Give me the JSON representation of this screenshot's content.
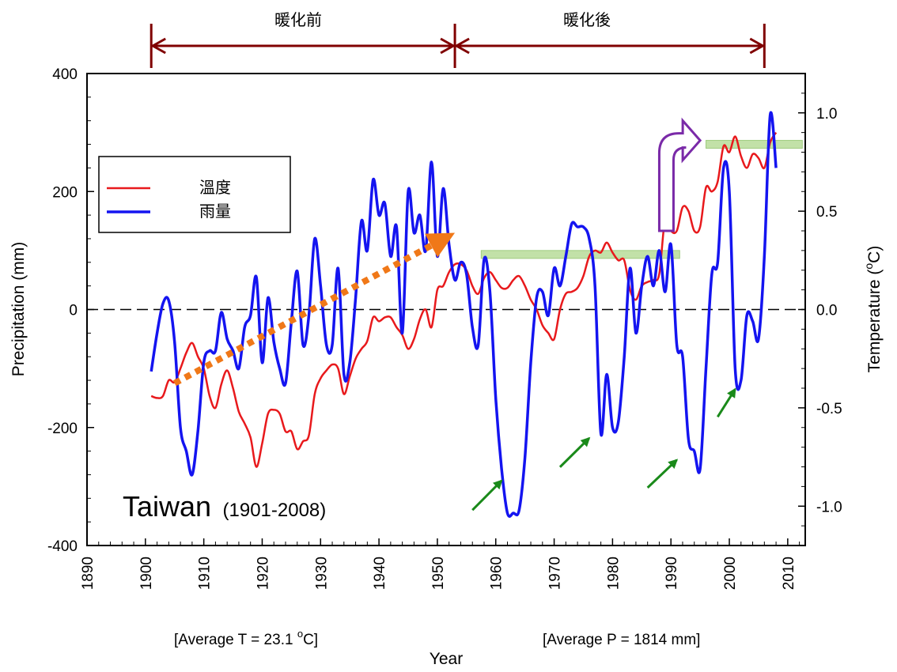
{
  "chart_data": {
    "type": "line",
    "xlabel": "Year",
    "ylabel_left": "Precipitation (mm)",
    "ylabel_right_prefix": "Temperature (",
    "ylabel_right_sup": "o",
    "ylabel_right_suffix": "C)",
    "xlim": [
      1890,
      2013
    ],
    "ylim_left": [
      -400,
      400
    ],
    "ylim_right": [
      -1.2,
      1.2
    ],
    "x_ticks": [
      1890,
      1900,
      1910,
      1920,
      1930,
      1940,
      1950,
      1960,
      1970,
      1980,
      1990,
      2000,
      2010
    ],
    "y_left_ticks": [
      -400,
      -200,
      0,
      200,
      400
    ],
    "y_right_ticks": [
      -1.0,
      -0.5,
      0.0,
      0.5,
      1.0
    ],
    "y_right_tick_labels": [
      "-1.0",
      "-0.5",
      "0.0",
      "0.5",
      "1.0"
    ],
    "legend": {
      "position": "upper-left",
      "entries": [
        {
          "label": "溫度",
          "color": "#e8191c"
        },
        {
          "label": "雨量",
          "color": "#1414f0"
        }
      ]
    },
    "series": [
      {
        "name": "溫度",
        "axis": "right",
        "color": "#e8191c",
        "x": [
          1901,
          1902,
          1903,
          1904,
          1905,
          1906,
          1907,
          1908,
          1909,
          1910,
          1911,
          1912,
          1913,
          1914,
          1915,
          1916,
          1917,
          1918,
          1919,
          1920,
          1921,
          1922,
          1923,
          1924,
          1925,
          1926,
          1927,
          1928,
          1929,
          1930,
          1931,
          1932,
          1933,
          1934,
          1935,
          1936,
          1937,
          1938,
          1939,
          1940,
          1941,
          1942,
          1943,
          1944,
          1945,
          1946,
          1947,
          1948,
          1949,
          1950,
          1951,
          1952,
          1953,
          1954,
          1955,
          1956,
          1957,
          1958,
          1959,
          1960,
          1961,
          1962,
          1963,
          1964,
          1965,
          1966,
          1967,
          1968,
          1969,
          1970,
          1971,
          1972,
          1973,
          1974,
          1975,
          1976,
          1977,
          1978,
          1979,
          1980,
          1981,
          1982,
          1983,
          1984,
          1985,
          1986,
          1987,
          1988,
          1989,
          1990,
          1991,
          1992,
          1993,
          1994,
          1995,
          1996,
          1997,
          1998,
          1999,
          2000,
          2001,
          2002,
          2003,
          2004,
          2005,
          2006,
          2007,
          2008
        ],
        "values": [
          -0.44,
          -0.45,
          -0.44,
          -0.36,
          -0.37,
          -0.3,
          -0.22,
          -0.17,
          -0.24,
          -0.3,
          -0.44,
          -0.5,
          -0.38,
          -0.31,
          -0.4,
          -0.52,
          -0.58,
          -0.65,
          -0.8,
          -0.68,
          -0.53,
          -0.51,
          -0.53,
          -0.62,
          -0.62,
          -0.71,
          -0.67,
          -0.64,
          -0.43,
          -0.35,
          -0.31,
          -0.28,
          -0.3,
          -0.43,
          -0.34,
          -0.25,
          -0.2,
          -0.16,
          -0.04,
          -0.06,
          -0.04,
          -0.04,
          -0.09,
          -0.13,
          -0.2,
          -0.15,
          -0.05,
          0.0,
          -0.09,
          0.1,
          0.12,
          0.19,
          0.23,
          0.23,
          0.2,
          0.12,
          0.08,
          0.16,
          0.19,
          0.15,
          0.11,
          0.11,
          0.15,
          0.17,
          0.12,
          0.05,
          0.0,
          -0.08,
          -0.12,
          -0.15,
          0.0,
          0.08,
          0.09,
          0.11,
          0.17,
          0.27,
          0.3,
          0.29,
          0.34,
          0.29,
          0.25,
          0.25,
          0.1,
          0.05,
          0.12,
          0.14,
          0.15,
          0.18,
          0.46,
          0.4,
          0.4,
          0.52,
          0.5,
          0.4,
          0.42,
          0.62,
          0.6,
          0.65,
          0.83,
          0.8,
          0.88,
          0.78,
          0.72,
          0.79,
          0.77,
          0.72,
          0.85,
          0.9
        ]
      },
      {
        "name": "雨量",
        "axis": "left",
        "color": "#1414f0",
        "x": [
          1901,
          1902,
          1903,
          1904,
          1905,
          1906,
          1907,
          1908,
          1909,
          1910,
          1911,
          1912,
          1913,
          1914,
          1915,
          1916,
          1917,
          1918,
          1919,
          1920,
          1921,
          1922,
          1923,
          1924,
          1925,
          1926,
          1927,
          1928,
          1929,
          1930,
          1931,
          1932,
          1933,
          1934,
          1935,
          1936,
          1937,
          1938,
          1939,
          1940,
          1941,
          1942,
          1943,
          1944,
          1945,
          1946,
          1947,
          1948,
          1949,
          1950,
          1951,
          1952,
          1953,
          1954,
          1955,
          1956,
          1957,
          1958,
          1959,
          1960,
          1961,
          1962,
          1963,
          1964,
          1965,
          1966,
          1967,
          1968,
          1969,
          1970,
          1971,
          1972,
          1973,
          1974,
          1975,
          1976,
          1977,
          1978,
          1979,
          1980,
          1981,
          1982,
          1983,
          1984,
          1985,
          1986,
          1987,
          1988,
          1989,
          1990,
          1991,
          1992,
          1993,
          1994,
          1995,
          1996,
          1997,
          1998,
          1999,
          2000,
          2001,
          2002,
          2003,
          2004,
          2005,
          2006,
          2007,
          2008
        ],
        "values": [
          -105,
          -40,
          10,
          15,
          -55,
          -200,
          -240,
          -280,
          -205,
          -90,
          -70,
          -70,
          -5,
          -50,
          -70,
          -100,
          -30,
          -10,
          55,
          -90,
          20,
          -55,
          -100,
          -125,
          -20,
          65,
          -60,
          -10,
          120,
          40,
          -60,
          -60,
          70,
          -110,
          -90,
          20,
          150,
          100,
          220,
          160,
          180,
          90,
          140,
          -40,
          200,
          130,
          160,
          100,
          250,
          90,
          205,
          110,
          50,
          80,
          60,
          -30,
          -60,
          85,
          30,
          -150,
          -270,
          -345,
          -345,
          -340,
          -250,
          -90,
          20,
          30,
          -10,
          70,
          40,
          90,
          145,
          140,
          140,
          120,
          40,
          -210,
          -110,
          -200,
          -190,
          -80,
          70,
          -40,
          40,
          90,
          40,
          100,
          30,
          110,
          -60,
          -80,
          -220,
          -240,
          -270,
          -100,
          60,
          80,
          240,
          200,
          -100,
          -120,
          -10,
          -20,
          -50,
          90,
          330,
          240
        ]
      }
    ],
    "top_labels": {
      "before": "暖化前",
      "after": "暖化後"
    },
    "top_arrow_years": {
      "start": 1901,
      "mid": 1953,
      "end": 2006
    },
    "station_label": "Taiwan",
    "station_years": "(1901-2008)",
    "avg_t_prefix": "[Average T = 23.1 ",
    "avg_t_sup": "o",
    "avg_t_suffix": "C]",
    "avg_p": "[Average P = 1814 mm]",
    "annotations": {
      "trend_arrow_color": "#f07818",
      "trend_arrow_from": {
        "x": 1905,
        "y": -125
      },
      "trend_arrow_to": {
        "x": 1953,
        "y": 130
      },
      "green_arrows": [
        {
          "from": {
            "x": 1956,
            "y": -340
          },
          "to": {
            "x": 1961,
            "y": -290
          }
        },
        {
          "from": {
            "x": 1971,
            "y": -267
          },
          "to": {
            "x": 1976,
            "y": -218
          }
        },
        {
          "from": {
            "x": 1986,
            "y": -302
          },
          "to": {
            "x": 1991,
            "y": -255
          }
        },
        {
          "from": {
            "x": 1998,
            "y": -182
          },
          "to": {
            "x": 2001,
            "y": -135
          }
        }
      ],
      "green_band_1": {
        "x_from": 1957.5,
        "x_to": 1991.5,
        "y": 0.28
      },
      "green_band_2": {
        "x_from": 1996,
        "x_to": 2012.5,
        "y": 0.84
      },
      "shift_arrow_color": "#7a2aa8",
      "shift_arrow": {
        "x": 1988,
        "y_bottom": 0.4,
        "y_top": 0.86,
        "x_head": 1995
      }
    }
  }
}
